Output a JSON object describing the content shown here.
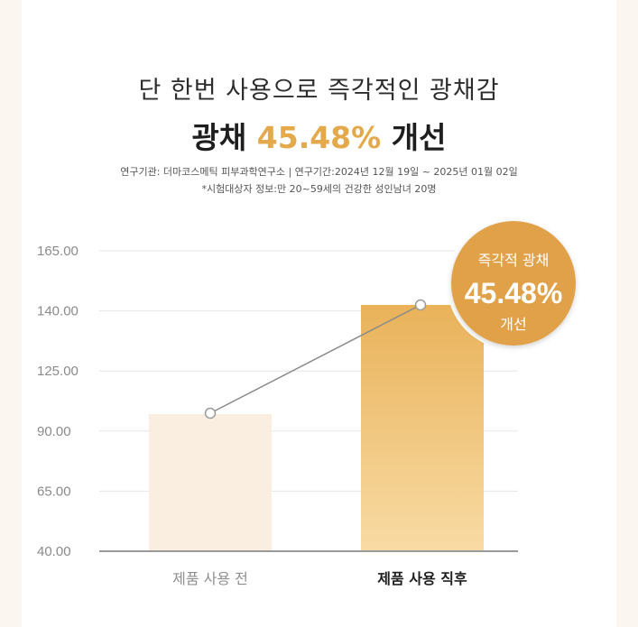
{
  "header": {
    "headline": "단 한번 사용으로 즉각적인 광채감",
    "big_prefix": "광채 ",
    "big_highlight": "45.48%",
    "big_suffix": " 개선",
    "info_line1": "연구기관: 더마코스메틱 피부과학연구소 | 연구기간:2024년 12월 19일 ~ 2025년 01월 02일",
    "info_line2": "*시험대상자 정보:만 20~59세의 건강한 성인남녀 20명"
  },
  "badge": {
    "top": "즉각적 광채",
    "value": "45.48%",
    "bottom": "개선"
  },
  "colors": {
    "accent": "#e3a94a",
    "badge": "#e0a14a",
    "bar_before": "#faeee0",
    "bar_after_top": "#e9b25a",
    "bar_after_bottom": "#f8dba4"
  },
  "chart_data": {
    "type": "bar",
    "categories": [
      "제품 사용 전",
      "제품 사용 직후"
    ],
    "values": [
      100,
      145.48
    ],
    "yticks": [
      "165.00",
      "140.00",
      "125.00",
      "90.00",
      "65.00",
      "40.00"
    ],
    "grid": true,
    "connector_line": true
  }
}
